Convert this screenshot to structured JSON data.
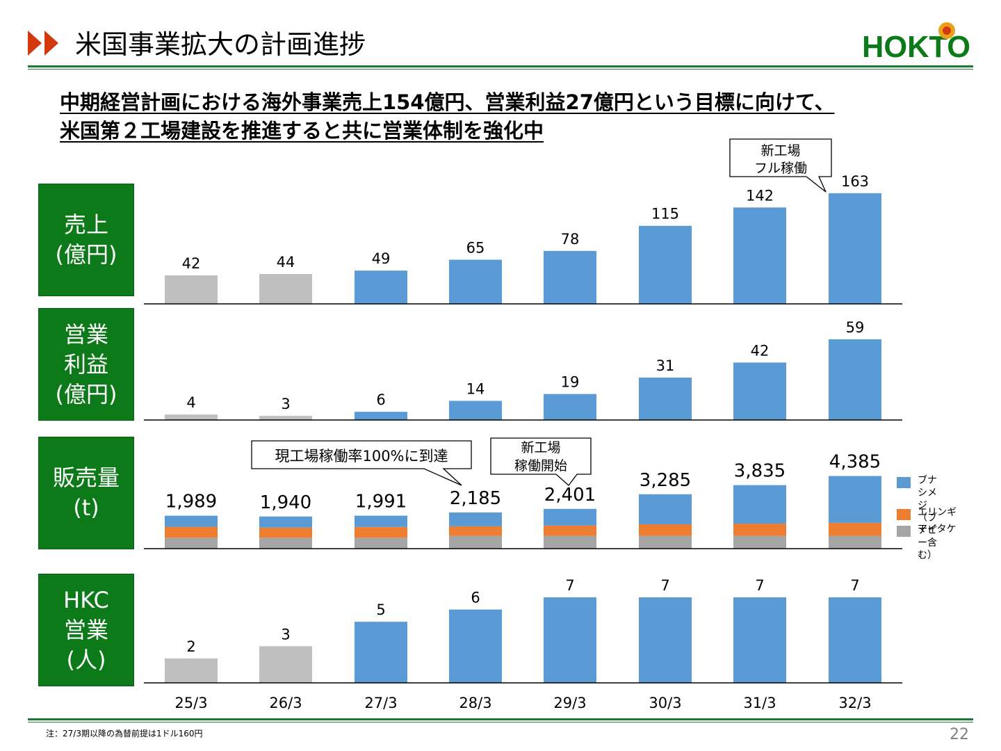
{
  "header": {
    "title": "米国事業拡大の計画進捗",
    "logo_text": "HOKTO"
  },
  "subtitle": {
    "line1": "中期経営計画における海外事業売上154億円、営業利益27億円という目標に向けて、",
    "line2": "米国第２工場建設を推進すると共に営業体制を強化中"
  },
  "colors": {
    "green": "#0d7a1a",
    "actual": "#bfbfbf",
    "plan": "#5b9bd5",
    "erngi": "#ed7d31",
    "maitake": "#a5a5a5",
    "arrow": "#d4380d"
  },
  "panels": {
    "sales": {
      "label": "売上\n(億円)"
    },
    "profit": {
      "label": "営業\n利益\n(億円)"
    },
    "volume": {
      "label": "販売量\n(t)"
    },
    "staff": {
      "label": "HKC\n営業\n(人)"
    }
  },
  "callouts": {
    "full_operation": "新工場\nフル稼働",
    "current_plant": "現工場稼働率100%に到達",
    "new_plant_start": "新工場\n稼働開始"
  },
  "legend": {
    "bunashimeji": "ブナシメジ\n（ブナピー含む）",
    "erngi": "エリンギ",
    "maitake": "マイタケ"
  },
  "chart_data": [
    {
      "type": "bar",
      "title": "売上(億円)",
      "categories": [
        "25/3",
        "26/3",
        "27/3",
        "28/3",
        "29/3",
        "30/3",
        "31/3",
        "32/3"
      ],
      "values": [
        42,
        44,
        49,
        65,
        78,
        115,
        142,
        163
      ],
      "labels": [
        "42",
        "44",
        "49",
        "65",
        "78",
        "115",
        "142",
        "163"
      ],
      "ylim": [
        0,
        170
      ]
    },
    {
      "type": "bar",
      "title": "営業利益(億円)",
      "categories": [
        "25/3",
        "26/3",
        "27/3",
        "28/3",
        "29/3",
        "30/3",
        "31/3",
        "32/3"
      ],
      "values": [
        4,
        3,
        6,
        14,
        19,
        31,
        42,
        59
      ],
      "labels": [
        "4",
        "3",
        "6",
        "14",
        "19",
        "31",
        "42",
        "59"
      ],
      "ylim": [
        0,
        62
      ]
    },
    {
      "type": "bar",
      "stacked": true,
      "title": "販売量(t)",
      "categories": [
        "25/3",
        "26/3",
        "27/3",
        "28/3",
        "29/3",
        "30/3",
        "31/3",
        "32/3"
      ],
      "labels": [
        "1,989",
        "1,940",
        "1,991",
        "2,185",
        "2,401",
        "3,285",
        "3,835",
        "4,385"
      ],
      "series": [
        {
          "name": "マイタケ",
          "values": [
            660,
            660,
            660,
            770,
            770,
            770,
            770,
            770
          ]
        },
        {
          "name": "エリンギ",
          "values": [
            660,
            610,
            650,
            575,
            630,
            700,
            740,
            790
          ]
        },
        {
          "name": "ブナシメジ（ブナピー含む）",
          "values": [
            669,
            670,
            681,
            840,
            1001,
            1815,
            2325,
            2825
          ]
        }
      ],
      "ylim": [
        0,
        4450
      ]
    },
    {
      "type": "bar",
      "title": "HKC営業(人)",
      "categories": [
        "25/3",
        "26/3",
        "27/3",
        "28/3",
        "29/3",
        "30/3",
        "31/3",
        "32/3"
      ],
      "values": [
        2,
        3,
        5,
        6,
        7,
        7,
        7,
        7
      ],
      "labels": [
        "2",
        "3",
        "5",
        "6",
        "7",
        "7",
        "7",
        "7"
      ],
      "ylim": [
        0,
        7
      ]
    }
  ],
  "footer": {
    "note": "注：27/3期以降の為替前提は1ドル160円",
    "page": "22"
  }
}
